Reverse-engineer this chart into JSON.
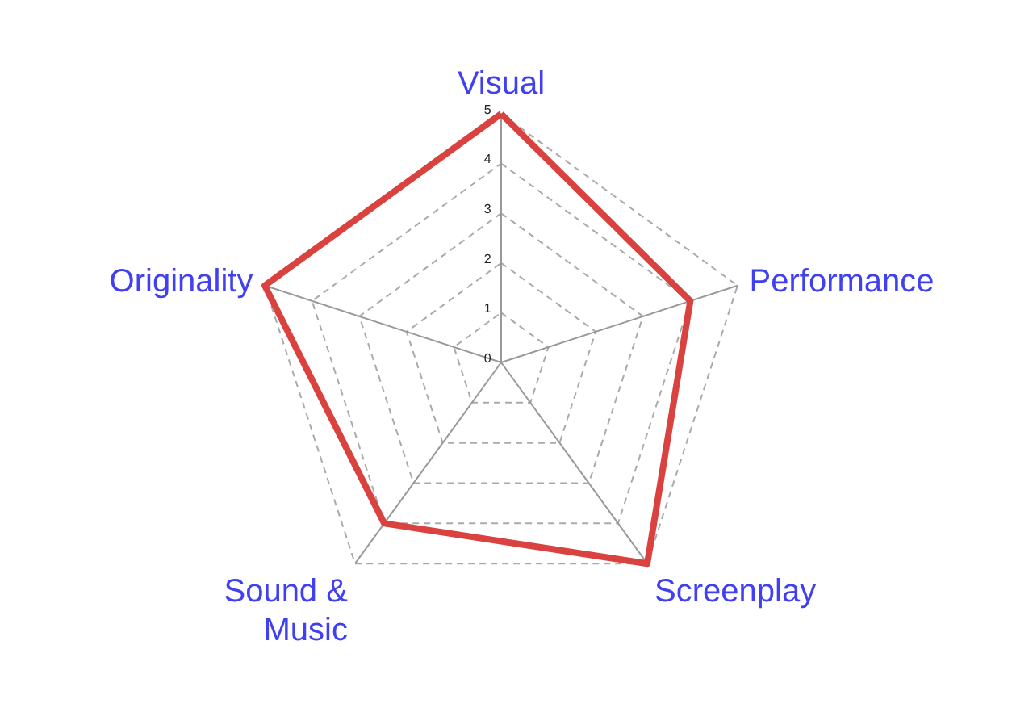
{
  "chart_data": {
    "type": "radar",
    "categories": [
      "Visual",
      "Performance",
      "Screenplay",
      "Sound & Music",
      "Originality"
    ],
    "series": [
      {
        "color": "#d9423f",
        "values": [
          5,
          4,
          5,
          4,
          5
        ]
      }
    ],
    "ylim": [
      0,
      5
    ],
    "yticks": [
      0,
      1,
      2,
      3,
      4,
      5
    ],
    "grid": true,
    "line_style": "solid",
    "marker": "none"
  }
}
